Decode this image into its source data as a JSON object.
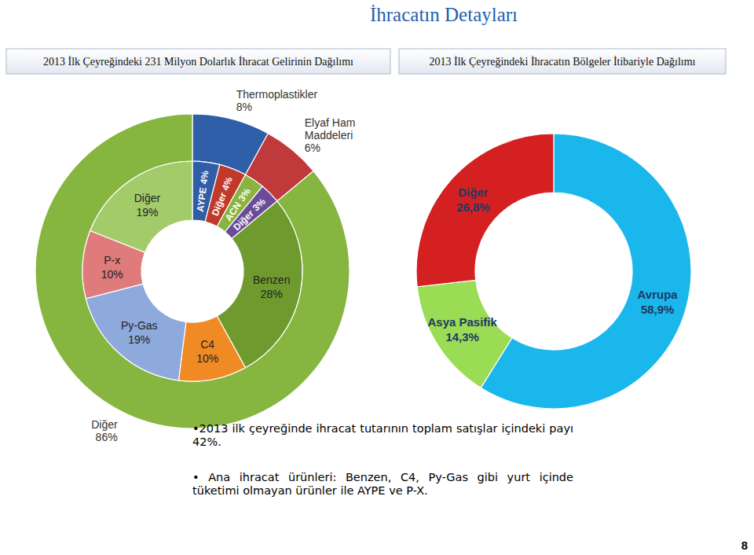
{
  "title": "İhracatın Detayları",
  "notes": [
    "•2013 ilk çeyreğinde ihracat tutarının toplam satışlar içindeki payı 42%.",
    "• Ana ihracat ürünleri: Benzen, C4, Py-Gas gibi yurt içinde tüketimi olmayan ürünler ile AYPE ve P-X."
  ],
  "page_number": 8,
  "chart_data": [
    {
      "type": "nested_donut",
      "title": "2013 İlk Çeyreğindeki 231 Milyon Dolarlık İhracat Gelirinin Dağılımı",
      "data_labels": true,
      "series": [
        {
          "categories": [
            "Thermoplastikler",
            "Elyaf Ham Maddeleri",
            "Diğer"
          ],
          "values": [
            8,
            6,
            86
          ],
          "value_labels": [
            "8%",
            "6%",
            "86%"
          ],
          "colors": [
            "#2e5fa8",
            "#c0393b",
            "#86b540"
          ]
        },
        {
          "categories": [
            "AYPE",
            "Diğer",
            "ACN",
            "Diğer",
            "Benzen",
            "C4",
            "Py-Gas",
            "P-x",
            "Diğer"
          ],
          "values": [
            4,
            4,
            3,
            3,
            28,
            10,
            19,
            10,
            19
          ],
          "value_labels": [
            "4%",
            "4%",
            "3%",
            "3%",
            "28%",
            "10%",
            "19%",
            "10%",
            "19%"
          ],
          "colors": [
            "#2f5ea6",
            "#c0392b",
            "#8ab43f",
            "#6b4c9a",
            "#6f9a2e",
            "#f08a24",
            "#8ea9db",
            "#e07b7b",
            "#a4cb6a"
          ]
        }
      ]
    },
    {
      "type": "donut",
      "title": "2013 İlk Çeyreğindeki İhracatın Bölgeler İtibariyle Dağılımı",
      "data_labels": true,
      "categories": [
        "Avrupa",
        "Asya Pasifik",
        "Diğer"
      ],
      "values": [
        58.9,
        14.3,
        26.8
      ],
      "value_labels": [
        "58,9%",
        "14,3%",
        "26,8%"
      ],
      "colors": [
        "#1ab7ec",
        "#9bdc55",
        "#d42020"
      ]
    }
  ]
}
